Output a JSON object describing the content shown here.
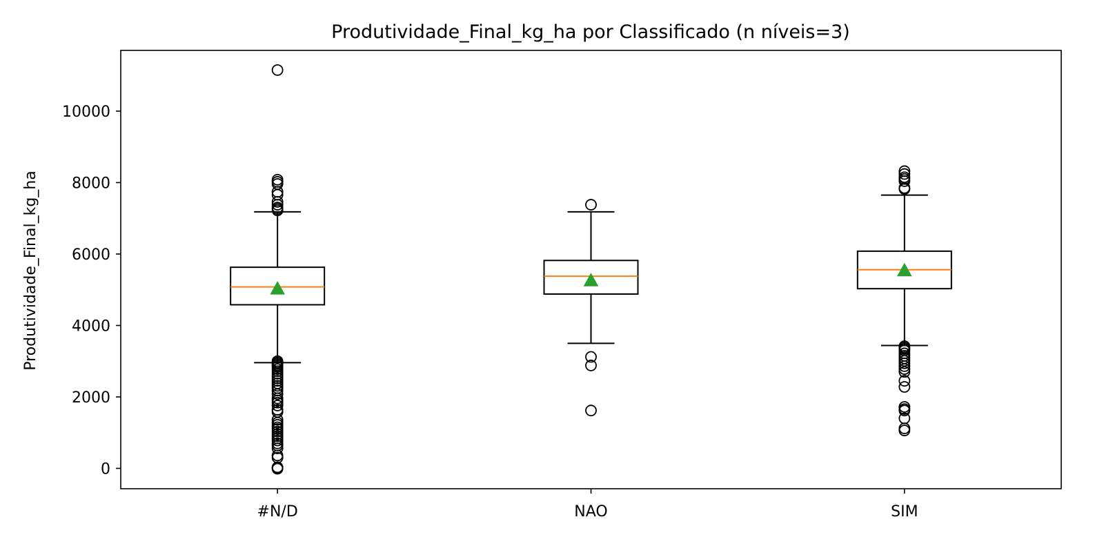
{
  "chart_data": {
    "type": "box",
    "title": "Produtividade_Final_kg_ha por Classificado (n níveis=3)",
    "xlabel": "",
    "ylabel": "Produtividade_Final_kg_ha",
    "ylim": [
      -570,
      11700
    ],
    "yticks": [
      0,
      2000,
      4000,
      6000,
      8000,
      10000
    ],
    "grid": false,
    "categories": [
      "#N/D",
      "NAO",
      "SIM"
    ],
    "boxes": [
      {
        "category": "#N/D",
        "whisker_low": 2960,
        "q1": 4580,
        "median": 5080,
        "mean": 5030,
        "q3": 5630,
        "whisker_high": 7180,
        "outliers": [
          11150,
          8080,
          8020,
          7960,
          7740,
          7660,
          7460,
          7380,
          7300,
          7260,
          7220,
          3000,
          2960,
          2920,
          2880,
          2840,
          2780,
          2720,
          2650,
          2580,
          2520,
          2450,
          2380,
          2310,
          2250,
          2180,
          2080,
          1960,
          1900,
          1840,
          1760,
          1640,
          1580,
          1360,
          1280,
          1220,
          1150,
          1100,
          1030,
          960,
          900,
          840,
          780,
          700,
          640,
          560,
          360,
          300,
          30,
          10,
          -10
        ]
      },
      {
        "category": "NAO",
        "whisker_low": 3500,
        "q1": 4880,
        "median": 5380,
        "mean": 5260,
        "q3": 5820,
        "whisker_high": 7180,
        "outliers": [
          7380,
          3120,
          2880,
          1620
        ]
      },
      {
        "category": "SIM",
        "whisker_low": 3440,
        "q1": 5030,
        "median": 5560,
        "mean": 5540,
        "q3": 6080,
        "whisker_high": 7650,
        "outliers": [
          8320,
          8240,
          8150,
          8100,
          8040,
          7850,
          7820,
          3420,
          3380,
          3340,
          3300,
          3220,
          3150,
          3080,
          3010,
          2940,
          2860,
          2780,
          2700,
          2450,
          2280,
          1720,
          1660,
          1620,
          1400,
          1120,
          1060
        ]
      }
    ],
    "colors": {
      "median": "#ff7f0e",
      "mean_marker": "#2ca02c",
      "box_edge": "#000000",
      "outlier_edge": "#000000",
      "background": "#ffffff"
    }
  }
}
